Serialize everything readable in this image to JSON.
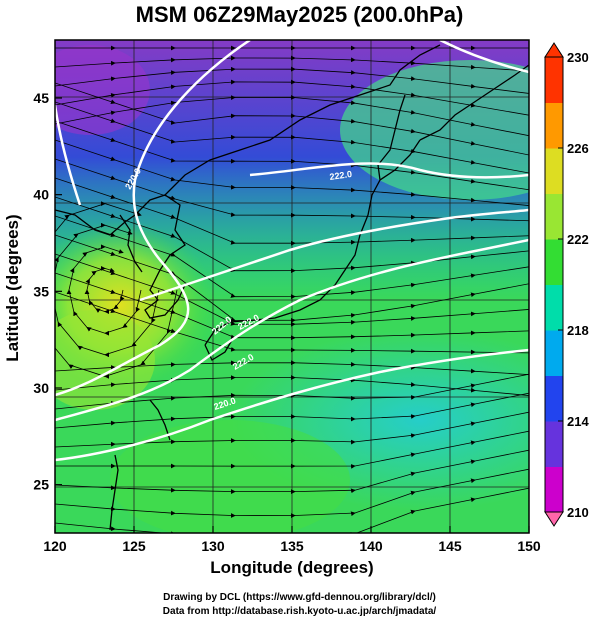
{
  "title": "MSM 06Z29May2025 (200.0hPa)",
  "axes": {
    "xlabel": "Longitude (degrees)",
    "ylabel": "Latitude  (degrees)",
    "xlim": [
      120,
      150
    ],
    "ylim": [
      22.5,
      48
    ],
    "xticks": [
      120,
      125,
      130,
      135,
      140,
      145,
      150
    ],
    "yticks": [
      25,
      30,
      35,
      40,
      45
    ]
  },
  "colorbar": {
    "min": 210,
    "max": 230,
    "ticks": [
      230,
      226,
      222,
      218,
      214,
      210
    ],
    "colors": [
      "#cc00cc",
      "#6633dd",
      "#2244ee",
      "#00aaee",
      "#00ddaa",
      "#33dd33",
      "#99e633",
      "#dddd22",
      "#ff9900",
      "#ff3300"
    ]
  },
  "contours": {
    "labels": [
      "220.0",
      "220.0",
      "222.0",
      "222.0",
      "222.0",
      "222.0"
    ]
  },
  "credits": {
    "line1": "Drawing by DCL (https://www.gfd-dennou.org/library/dcl/)",
    "line2": "Data from http://database.rish.kyoto-u.ac.jp/arch/jmadata/"
  }
}
